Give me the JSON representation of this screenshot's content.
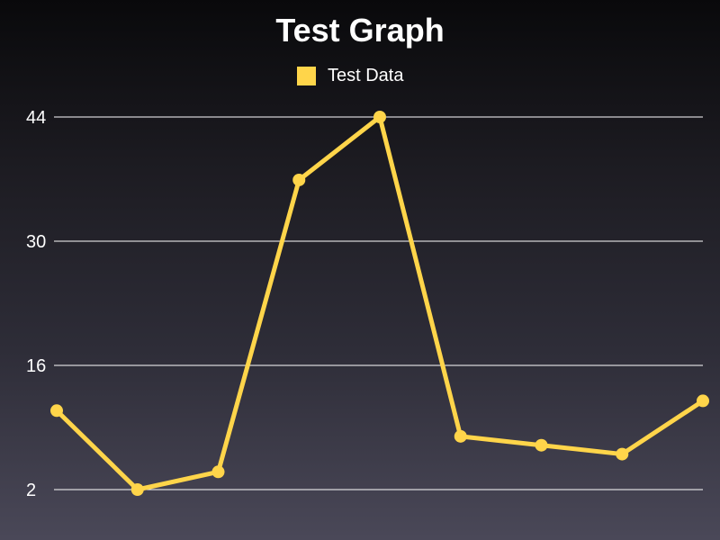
{
  "colors": {
    "series": "#ffd54a",
    "grid": "#ffffff",
    "text": "#ffffff"
  },
  "chart_data": {
    "type": "line",
    "title": "Test Graph",
    "xlabel": "",
    "ylabel": "",
    "ylim": [
      2,
      44
    ],
    "yticks": [
      "2",
      "16",
      "30",
      "44"
    ],
    "grid": "horizontal",
    "legend_position": "top-center",
    "x": [
      1,
      2,
      3,
      4,
      5,
      6,
      7,
      8,
      9
    ],
    "series": [
      {
        "name": "Test Data",
        "values": [
          10.9,
          2,
          4,
          36.9,
          44,
          8,
          7,
          6,
          12
        ],
        "marker": "circle"
      }
    ]
  }
}
